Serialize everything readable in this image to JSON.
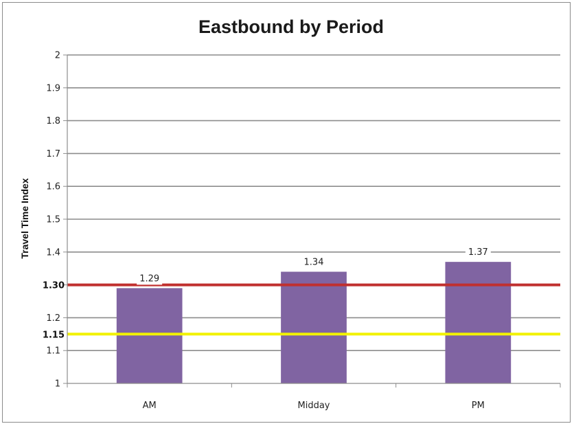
{
  "chart_data": {
    "type": "bar",
    "title": "Eastbound by Period",
    "xlabel": "",
    "ylabel": "Travel Time Index",
    "categories": [
      "AM",
      "Midday",
      "PM"
    ],
    "values": [
      1.29,
      1.34,
      1.37
    ],
    "data_labels": [
      "1.29",
      "1.34",
      "1.37"
    ],
    "ylim": [
      1,
      2
    ],
    "y_ticks": [
      "1",
      "1.1",
      "1.2",
      "1.3",
      "1.4",
      "1.5",
      "1.6",
      "1.7",
      "1.8",
      "1.9",
      "2"
    ],
    "grid": true,
    "legend": "none",
    "bar_color": "#8064A2",
    "reference_lines": [
      {
        "value": 1.3,
        "label": "1.30",
        "color": "#C0302F"
      },
      {
        "value": 1.15,
        "label": "1.15",
        "color": "#F2F200"
      }
    ]
  }
}
